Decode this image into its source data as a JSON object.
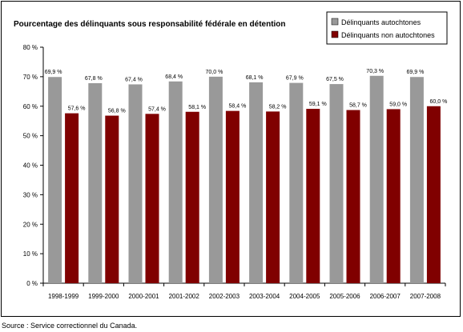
{
  "chart_data": {
    "type": "bar",
    "title": "Pourcentage des délinquants sous responsabilité fédérale en détention",
    "categories": [
      "1998-1999",
      "1999-2000",
      "2000-2001",
      "2001-2002",
      "2002-2003",
      "2003-2004",
      "2004-2005",
      "2005-2006",
      "2006-2007",
      "2007-2008"
    ],
    "series": [
      {
        "name": "Délinquants autochtones",
        "color": "#999999",
        "values": [
          69.9,
          67.8,
          67.4,
          68.4,
          70.0,
          68.1,
          67.9,
          67.5,
          70.3,
          69.9
        ],
        "labels": [
          "69,9 %",
          "67,8 %",
          "67,4 %",
          "68,4 %",
          "70,0 %",
          "68,1 %",
          "67,9 %",
          "67,5 %",
          "70,3 %",
          "69,9 %"
        ]
      },
      {
        "name": "Délinquants non autochtones",
        "color": "#800000",
        "values": [
          57.6,
          56.8,
          57.4,
          58.1,
          58.4,
          58.2,
          59.1,
          58.7,
          59.0,
          60.0
        ],
        "labels": [
          "57,6 %",
          "56,8 %",
          "57,4 %",
          "58,1 %",
          "58,4 %",
          "58,2 %",
          "59,1 %",
          "58,7 %",
          "59,0 %",
          "60,0 %"
        ]
      }
    ],
    "ylim": [
      0,
      80
    ],
    "yticks": [
      0,
      10,
      20,
      30,
      40,
      50,
      60,
      70,
      80
    ],
    "ytick_labels": [
      "0 %",
      "10 %",
      "20 %",
      "30 %",
      "40 %",
      "50 %",
      "60 %",
      "70 %",
      "80 %"
    ],
    "legend_position": "top-right",
    "grid": false
  },
  "source": "Source : Service correctionnel du Canada."
}
